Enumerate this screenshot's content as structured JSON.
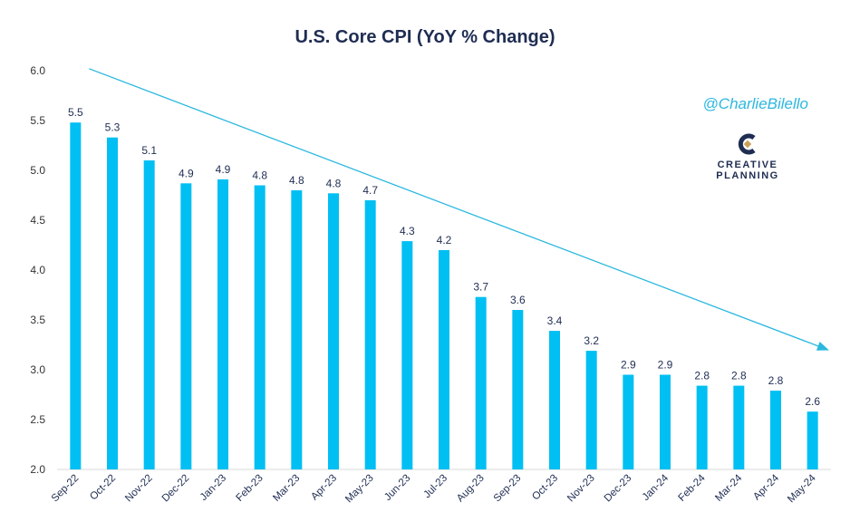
{
  "chart_data": {
    "type": "bar",
    "title": "U.S. Core CPI (YoY % Change)",
    "categories": [
      "Sep-22",
      "Oct-22",
      "Nov-22",
      "Dec-22",
      "Jan-23",
      "Feb-23",
      "Mar-23",
      "Apr-23",
      "May-23",
      "Jun-23",
      "Jul-23",
      "Aug-23",
      "Sep-23",
      "Oct-23",
      "Nov-23",
      "Dec-23",
      "Jan-24",
      "Feb-24",
      "Mar-24",
      "Apr-24",
      "May-24"
    ],
    "values": [
      5.48,
      5.33,
      5.1,
      4.87,
      4.91,
      4.85,
      4.8,
      4.77,
      4.7,
      4.29,
      4.2,
      3.73,
      3.6,
      3.39,
      3.19,
      2.95,
      2.95,
      2.84,
      2.84,
      2.79,
      2.58
    ],
    "data_labels": [
      "5.5",
      "5.3",
      "5.1",
      "4.9",
      "4.9",
      "4.8",
      "4.8",
      "4.8",
      "4.7",
      "4.3",
      "4.2",
      "3.7",
      "3.6",
      "3.4",
      "3.2",
      "2.9",
      "2.9",
      "2.8",
      "2.8",
      "2.8",
      "2.6"
    ],
    "ylim": [
      2.0,
      6.0
    ],
    "yticks": [
      "2.0",
      "2.5",
      "3.0",
      "3.5",
      "4.0",
      "4.5",
      "5.0",
      "5.5",
      "6.0"
    ],
    "xlabel": "",
    "ylabel": "",
    "bar_color": "#00bff3",
    "trend_arrow": {
      "start": {
        "x": "Sep-22",
        "y": 6.02
      },
      "end": {
        "x": "May-24",
        "y": 3.2
      },
      "color": "#2bb8df"
    },
    "grid": false,
    "legend": "none"
  },
  "branding": {
    "handle": "@CharlieBilello",
    "logo_line1": "CREATIVE",
    "logo_line2": "PLANNING",
    "logo_icon": "creative-planning-c-icon"
  }
}
